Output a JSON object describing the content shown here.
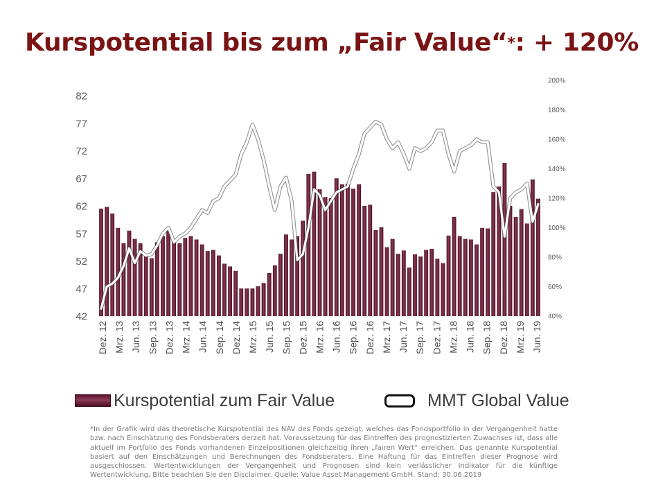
{
  "title": {
    "main": "Kurspotential bis zum „Fair Value“",
    "asterisk": "*",
    "suffix": ": + 120%"
  },
  "chart_data": {
    "type": "bar",
    "left_axis": {
      "ticks": [
        "82",
        "77",
        "72",
        "67",
        "62",
        "57",
        "52",
        "47",
        "42"
      ],
      "ylim": [
        42,
        82
      ]
    },
    "right_axis": {
      "ticks": [
        "200%",
        "180%",
        "160%",
        "140%",
        "120%",
        "100%",
        "80%",
        "60%",
        "40%"
      ],
      "ylim": [
        40,
        200
      ]
    },
    "x_labels": [
      "Dez. 12",
      "Mrz. 13",
      "Jun. 13",
      "Sep. 13",
      "Dez. 13",
      "Mrz. 14",
      "Jun. 14",
      "Sep. 14",
      "Dez. 14",
      "Mrz. 15",
      "Jun. 15",
      "Sep. 15",
      "Dez. 15",
      "Mrz. 16",
      "Jun. 16",
      "Sep. 16",
      "Dez. 16",
      "Mrz. 17",
      "Jun. 17",
      "Sep. 17",
      "Dez. 17",
      "Mrz. 18",
      "Jun. 18",
      "Sep. 18",
      "Dez. 18",
      "Mrz. 19",
      "Jun. 19"
    ],
    "series": [
      {
        "name": "Kurspotential zum Fair Value",
        "type": "bar",
        "axis": "left",
        "values": [
          61.5,
          61.8,
          60.6,
          58.0,
          55.2,
          57.5,
          56.0,
          55.2,
          52.8,
          52.5,
          55.4,
          56.5,
          57.9,
          55.7,
          55.2,
          56.2,
          56.5,
          55.9,
          55.0,
          53.8,
          54.0,
          53.0,
          51.5,
          51.0,
          50.2,
          47.0,
          47.0,
          47.0,
          47.4,
          48.0,
          49.8,
          51.2,
          53.3,
          56.8,
          55.9,
          56.5,
          59.3,
          67.8,
          68.2,
          65.0,
          63.6,
          63.4,
          67.0,
          65.9,
          66.0,
          65.1,
          65.9,
          62.0,
          62.2,
          57.6,
          58.1,
          54.5,
          56.0,
          53.3,
          53.9,
          50.8,
          53.2,
          52.8,
          54.0,
          54.2,
          52.4,
          51.6,
          56.6,
          60.0,
          56.5,
          56.0,
          55.9,
          55.0,
          58.0,
          57.9,
          64.5,
          65.5,
          69.8,
          62.0,
          60.0,
          61.4,
          58.8,
          66.8,
          63.3
        ]
      },
      {
        "name": "MMT Global Value",
        "type": "line",
        "axis": "right",
        "values": [
          45,
          60,
          62,
          66,
          74,
          86,
          76,
          84,
          81,
          82,
          88,
          96,
          100,
          90,
          94,
          96,
          100,
          106,
          112,
          110,
          118,
          120,
          128,
          132,
          136,
          150,
          158,
          170,
          160,
          146,
          128,
          112,
          128,
          134,
          118,
          78,
          82,
          100,
          126,
          122,
          112,
          118,
          124,
          126,
          128,
          140,
          150,
          164,
          168,
          172,
          170,
          160,
          154,
          158,
          150,
          140,
          154,
          152,
          154,
          158,
          166,
          166,
          150,
          138,
          152,
          154,
          156,
          160,
          158,
          158,
          128,
          124,
          94,
          120,
          124,
          126,
          130,
          104,
          116
        ]
      }
    ],
    "colors": {
      "bar_dark": "#5d1530",
      "bar_light": "#8a3a56",
      "line": "#ffffff",
      "line_outline": "#3a3a3a",
      "title": "#7a1414"
    }
  },
  "legend": {
    "bars": "Kurspotential zum Fair Value",
    "line": "MMT Global Value"
  },
  "footnote": "*In der Grafik wird das theoretische Kurspotential des NAV des Fonds gezeigt, welches das Fondsportfolio in der Vergangenheit hatte bzw. nach Einschätzung des Fondsberaters derzeit hat. Voraussetzung für das Eintreffen des prognostizierten Zuwachses ist, dass alle aktuell im Portfolio des Fonds vorhandenen Einzelpositionen gleichzeitig ihren „fairen Wert“ erreichen. Das genannte Kurspotential basiert auf den Einschätzungen und Berechnungen des Fondsberaters. Eine Haftung für das Eintreffen dieser Prognose wird ausgeschlossen. Wertentwicklungen der Vergangenheit und Prognosen sind kein verlässlicher Indikator für die künftige Wertentwicklung. Bitte beachten Sie den Disclaimer. Quelle: Value Asset Management GmbH, Stand: 30.06.2019"
}
